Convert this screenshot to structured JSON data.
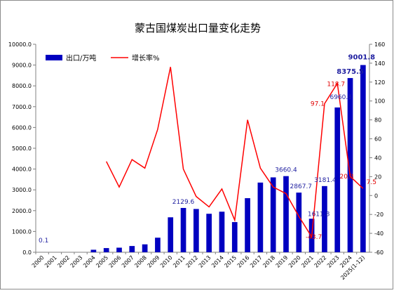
{
  "chart_data": {
    "type": "bar",
    "title": "蒙古国煤炭出口量变化走势",
    "categories": [
      "2000",
      "2001",
      "2002",
      "2003",
      "2004",
      "2005",
      "2006",
      "2007",
      "2008",
      "2009",
      "2010",
      "2011",
      "2012",
      "2013",
      "2014",
      "2015",
      "2016",
      "2017",
      "2018",
      "2019",
      "2020",
      "2021",
      "2022",
      "2023",
      "2024",
      "2025(1-12)"
    ],
    "series": [
      {
        "name": "出口/万吨",
        "type": "bar",
        "axis": "left",
        "color": "#0000C0",
        "values": [
          0.1,
          0,
          0,
          0,
          120,
          200,
          220,
          300,
          380,
          700,
          1680,
          2129.6,
          2080,
          1850,
          1950,
          1450,
          2600,
          3350,
          3600,
          3660.4,
          2867.7,
          1611.8,
          3181.4,
          6960.8,
          8375.5,
          9001.8
        ]
      },
      {
        "name": "增长率%",
        "type": "line",
        "axis": "right",
        "color": "#FF0000",
        "values": [
          null,
          null,
          null,
          null,
          null,
          36,
          9,
          38,
          29,
          70,
          136,
          28,
          -1,
          -12,
          7,
          -26,
          80,
          29,
          9,
          2,
          -22,
          -43.7,
          97.1,
          118.7,
          20.3,
          7.5
        ]
      }
    ],
    "bar_labels": [
      {
        "index": 0,
        "text": "0.1"
      },
      {
        "index": 11,
        "text": "2129.6"
      },
      {
        "index": 19,
        "text": "3660.4"
      },
      {
        "index": 20,
        "text": "2867.7"
      },
      {
        "index": 21,
        "text": "1611.8"
      },
      {
        "index": 22,
        "text": "3181.4"
      },
      {
        "index": 23,
        "text": "6960.8"
      },
      {
        "index": 24,
        "text": "8375.5",
        "bold": true
      },
      {
        "index": 25,
        "text": "9001.8",
        "bold": true
      }
    ],
    "line_labels": [
      {
        "index": 21,
        "text": "-43.7"
      },
      {
        "index": 22,
        "text": "97.1"
      },
      {
        "index": 23,
        "text": "118.7"
      },
      {
        "index": 24,
        "text": "20.3"
      },
      {
        "index": 25,
        "text": "7.5"
      }
    ],
    "y_left": {
      "min": 0,
      "max": 10000,
      "step": 1000,
      "ticks": [
        "0.0",
        "1000.0",
        "2000.0",
        "3000.0",
        "4000.0",
        "5000.0",
        "6000.0",
        "7000.0",
        "8000.0",
        "9000.0",
        "10000.0"
      ]
    },
    "y_right": {
      "min": -60,
      "max": 160,
      "step": 20,
      "ticks": [
        "-60",
        "-40",
        "-20",
        "0",
        "20",
        "40",
        "60",
        "80",
        "100",
        "120",
        "140",
        "160"
      ]
    },
    "legend_position": "top-left",
    "grid": false,
    "colors": {
      "bar": "#0000C0",
      "line": "#FF0000",
      "bar_label": "#1F1FA0",
      "line_label": "#E00000"
    }
  }
}
